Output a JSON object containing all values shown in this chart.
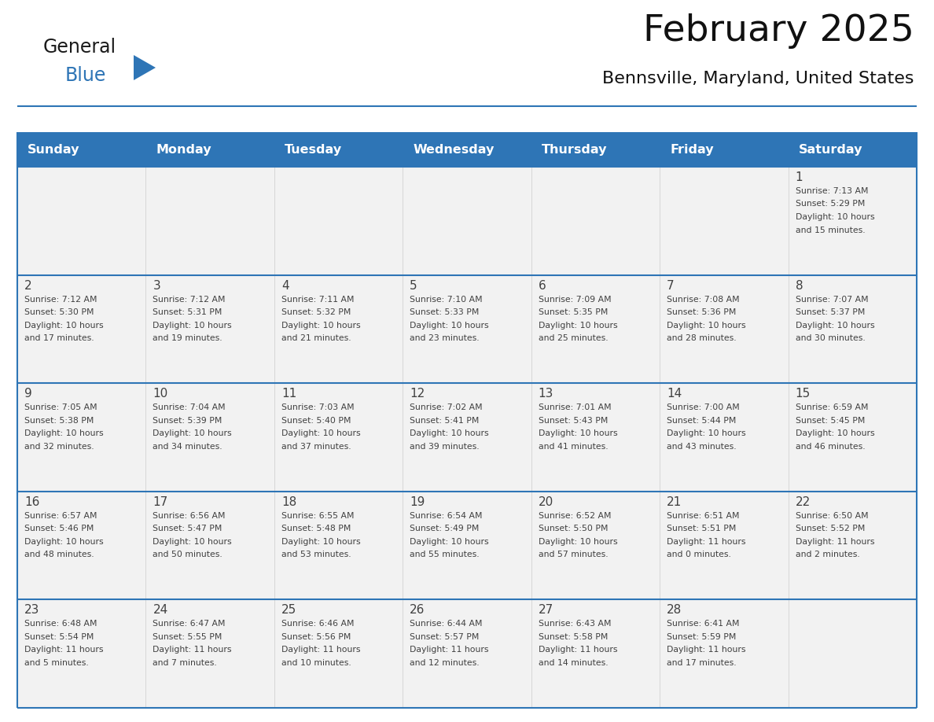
{
  "title": "February 2025",
  "subtitle": "Bennsville, Maryland, United States",
  "header_bg": "#2E75B6",
  "header_text_color": "#FFFFFF",
  "cell_bg": "#F2F2F2",
  "border_color": "#2E75B6",
  "row_line_color": "#2E75B6",
  "text_color": "#404040",
  "days_of_week": [
    "Sunday",
    "Monday",
    "Tuesday",
    "Wednesday",
    "Thursday",
    "Friday",
    "Saturday"
  ],
  "weeks": [
    [
      {
        "day": "",
        "info": ""
      },
      {
        "day": "",
        "info": ""
      },
      {
        "day": "",
        "info": ""
      },
      {
        "day": "",
        "info": ""
      },
      {
        "day": "",
        "info": ""
      },
      {
        "day": "",
        "info": ""
      },
      {
        "day": "1",
        "info": "Sunrise: 7:13 AM\nSunset: 5:29 PM\nDaylight: 10 hours\nand 15 minutes."
      }
    ],
    [
      {
        "day": "2",
        "info": "Sunrise: 7:12 AM\nSunset: 5:30 PM\nDaylight: 10 hours\nand 17 minutes."
      },
      {
        "day": "3",
        "info": "Sunrise: 7:12 AM\nSunset: 5:31 PM\nDaylight: 10 hours\nand 19 minutes."
      },
      {
        "day": "4",
        "info": "Sunrise: 7:11 AM\nSunset: 5:32 PM\nDaylight: 10 hours\nand 21 minutes."
      },
      {
        "day": "5",
        "info": "Sunrise: 7:10 AM\nSunset: 5:33 PM\nDaylight: 10 hours\nand 23 minutes."
      },
      {
        "day": "6",
        "info": "Sunrise: 7:09 AM\nSunset: 5:35 PM\nDaylight: 10 hours\nand 25 minutes."
      },
      {
        "day": "7",
        "info": "Sunrise: 7:08 AM\nSunset: 5:36 PM\nDaylight: 10 hours\nand 28 minutes."
      },
      {
        "day": "8",
        "info": "Sunrise: 7:07 AM\nSunset: 5:37 PM\nDaylight: 10 hours\nand 30 minutes."
      }
    ],
    [
      {
        "day": "9",
        "info": "Sunrise: 7:05 AM\nSunset: 5:38 PM\nDaylight: 10 hours\nand 32 minutes."
      },
      {
        "day": "10",
        "info": "Sunrise: 7:04 AM\nSunset: 5:39 PM\nDaylight: 10 hours\nand 34 minutes."
      },
      {
        "day": "11",
        "info": "Sunrise: 7:03 AM\nSunset: 5:40 PM\nDaylight: 10 hours\nand 37 minutes."
      },
      {
        "day": "12",
        "info": "Sunrise: 7:02 AM\nSunset: 5:41 PM\nDaylight: 10 hours\nand 39 minutes."
      },
      {
        "day": "13",
        "info": "Sunrise: 7:01 AM\nSunset: 5:43 PM\nDaylight: 10 hours\nand 41 minutes."
      },
      {
        "day": "14",
        "info": "Sunrise: 7:00 AM\nSunset: 5:44 PM\nDaylight: 10 hours\nand 43 minutes."
      },
      {
        "day": "15",
        "info": "Sunrise: 6:59 AM\nSunset: 5:45 PM\nDaylight: 10 hours\nand 46 minutes."
      }
    ],
    [
      {
        "day": "16",
        "info": "Sunrise: 6:57 AM\nSunset: 5:46 PM\nDaylight: 10 hours\nand 48 minutes."
      },
      {
        "day": "17",
        "info": "Sunrise: 6:56 AM\nSunset: 5:47 PM\nDaylight: 10 hours\nand 50 minutes."
      },
      {
        "day": "18",
        "info": "Sunrise: 6:55 AM\nSunset: 5:48 PM\nDaylight: 10 hours\nand 53 minutes."
      },
      {
        "day": "19",
        "info": "Sunrise: 6:54 AM\nSunset: 5:49 PM\nDaylight: 10 hours\nand 55 minutes."
      },
      {
        "day": "20",
        "info": "Sunrise: 6:52 AM\nSunset: 5:50 PM\nDaylight: 10 hours\nand 57 minutes."
      },
      {
        "day": "21",
        "info": "Sunrise: 6:51 AM\nSunset: 5:51 PM\nDaylight: 11 hours\nand 0 minutes."
      },
      {
        "day": "22",
        "info": "Sunrise: 6:50 AM\nSunset: 5:52 PM\nDaylight: 11 hours\nand 2 minutes."
      }
    ],
    [
      {
        "day": "23",
        "info": "Sunrise: 6:48 AM\nSunset: 5:54 PM\nDaylight: 11 hours\nand 5 minutes."
      },
      {
        "day": "24",
        "info": "Sunrise: 6:47 AM\nSunset: 5:55 PM\nDaylight: 11 hours\nand 7 minutes."
      },
      {
        "day": "25",
        "info": "Sunrise: 6:46 AM\nSunset: 5:56 PM\nDaylight: 11 hours\nand 10 minutes."
      },
      {
        "day": "26",
        "info": "Sunrise: 6:44 AM\nSunset: 5:57 PM\nDaylight: 11 hours\nand 12 minutes."
      },
      {
        "day": "27",
        "info": "Sunrise: 6:43 AM\nSunset: 5:58 PM\nDaylight: 11 hours\nand 14 minutes."
      },
      {
        "day": "28",
        "info": "Sunrise: 6:41 AM\nSunset: 5:59 PM\nDaylight: 11 hours\nand 17 minutes."
      },
      {
        "day": "",
        "info": ""
      }
    ]
  ],
  "logo_general_color": "#1a1a1a",
  "logo_blue_color": "#2E75B6",
  "logo_triangle_color": "#2E75B6",
  "fig_width": 11.88,
  "fig_height": 9.18,
  "dpi": 100
}
